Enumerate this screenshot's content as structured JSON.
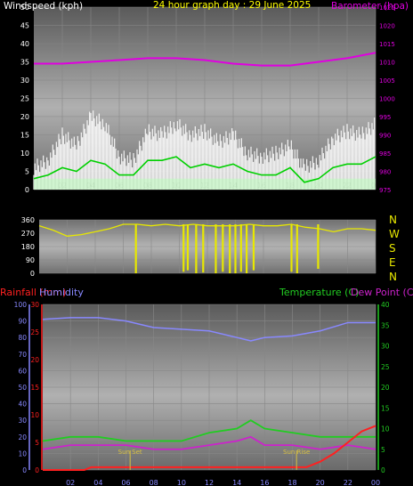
{
  "colors": {
    "background": "#000000",
    "wind": "#ffffff",
    "gust_avg": "#00d000",
    "wind_light": "#b8ffb8",
    "barometer": "#e000e0",
    "title": "#ffff00",
    "direction": "#e8e800",
    "rainfall": "#ff2020",
    "humidity": "#8888ff",
    "temperature": "#22cc22",
    "dewpoint": "#cc22cc",
    "sun": "#d8c040"
  },
  "chart_data": [
    {
      "type": "line",
      "title": "24 hour graph day : 29 June 2025",
      "left_axis_label": "Windspeed (kph)",
      "right_axis_label": "Barometer (hpa)",
      "x_ticks": [
        "02",
        "04",
        "06",
        "08",
        "10",
        "12",
        "14",
        "16",
        "18",
        "20",
        "22",
        "00"
      ],
      "left_ticks": [
        0,
        5,
        10,
        15,
        20,
        25,
        30,
        35,
        40,
        45,
        50
      ],
      "right_ticks": [
        975,
        980,
        985,
        990,
        995,
        1000,
        1005,
        1010,
        1015,
        1020,
        1025
      ],
      "left_ylim": [
        0,
        50
      ],
      "right_ylim": [
        975,
        1025
      ],
      "grid": true,
      "series": [
        {
          "role": "wind_gust",
          "x": [
            0,
            1,
            2,
            3,
            4,
            5,
            6,
            7,
            8,
            9,
            10,
            11,
            12,
            13,
            14,
            15,
            16,
            17,
            18,
            19,
            20,
            21,
            22,
            23,
            24
          ],
          "values": [
            6,
            8,
            15,
            12,
            20,
            18,
            9,
            8,
            16,
            15,
            18,
            15,
            16,
            13,
            15,
            10,
            9,
            10,
            12,
            6,
            8,
            14,
            16,
            15,
            18
          ]
        },
        {
          "role": "wind_avg",
          "x": [
            0,
            1,
            2,
            3,
            4,
            5,
            6,
            7,
            8,
            9,
            10,
            11,
            12,
            13,
            14,
            15,
            16,
            17,
            18,
            19,
            20,
            21,
            22,
            23,
            24
          ],
          "values": [
            3,
            4,
            6,
            5,
            8,
            7,
            4,
            4,
            8,
            8,
            9,
            6,
            7,
            6,
            7,
            5,
            4,
            4,
            6,
            2,
            3,
            6,
            7,
            7,
            9
          ]
        },
        {
          "role": "barometer",
          "x": [
            0,
            2,
            4,
            6,
            8,
            10,
            12,
            14,
            16,
            18,
            20,
            22,
            24
          ],
          "values": [
            1009.5,
            1009.5,
            1010,
            1010.5,
            1011,
            1011,
            1010.5,
            1009.5,
            1009,
            1009,
            1010,
            1011,
            1012.5
          ]
        }
      ]
    },
    {
      "type": "line",
      "title": "",
      "left_ticks": [
        0,
        90,
        180,
        270,
        360
      ],
      "left_ylim": [
        0,
        360
      ],
      "right_labels": [
        "N",
        "W",
        "S",
        "E",
        "N"
      ],
      "x_ticks": [
        "02",
        "04",
        "06",
        "08",
        "10",
        "12",
        "14",
        "16",
        "18",
        "20",
        "22",
        "00"
      ],
      "series": [
        {
          "role": "wind_direction",
          "x": [
            0,
            1,
            2,
            3,
            4,
            5,
            6,
            7,
            8,
            9,
            10,
            11,
            12,
            13,
            14,
            15,
            16,
            17,
            18,
            19,
            20,
            21,
            22,
            23,
            24
          ],
          "values": [
            320,
            290,
            250,
            260,
            280,
            300,
            330,
            330,
            320,
            330,
            320,
            330,
            320,
            320,
            320,
            330,
            320,
            320,
            330,
            310,
            300,
            280,
            300,
            300,
            290
          ]
        }
      ]
    },
    {
      "type": "line",
      "title": "",
      "left_outer_label": "Rainfall (mm)",
      "left_inner_label": "Humidity",
      "right_label": "Temperature (C)",
      "right_label_2": "Dew Point (C)",
      "humidity_ticks": [
        0,
        10,
        20,
        30,
        40,
        50,
        60,
        70,
        80,
        90,
        100
      ],
      "rain_ticks": [
        0,
        5,
        10,
        15,
        20,
        25,
        30
      ],
      "temp_ticks": [
        0,
        5,
        10,
        15,
        20,
        25,
        30,
        35,
        40
      ],
      "humidity_ylim": [
        0,
        100
      ],
      "rain_ylim": [
        0,
        30
      ],
      "temp_ylim": [
        0,
        40
      ],
      "x_ticks": [
        "02",
        "04",
        "06",
        "08",
        "10",
        "12",
        "14",
        "16",
        "18",
        "20",
        "22",
        "00"
      ],
      "annotations": [
        {
          "text": "Sun Set",
          "x": 6.3
        },
        {
          "text": "Sun Rise",
          "x": 18.3
        }
      ],
      "series": [
        {
          "role": "humidity",
          "x": [
            0,
            2,
            4,
            6,
            8,
            10,
            12,
            14,
            15,
            16,
            18,
            20,
            22,
            23,
            24
          ],
          "values": [
            91,
            92,
            92,
            90,
            86,
            85,
            84,
            80,
            78,
            80,
            81,
            84,
            89,
            89,
            89
          ]
        },
        {
          "role": "temperature",
          "x": [
            0,
            2,
            4,
            6,
            8,
            10,
            12,
            14,
            15,
            16,
            18,
            20,
            22,
            24
          ],
          "values": [
            7,
            8,
            8,
            7,
            7,
            7,
            9,
            10,
            12,
            10,
            9,
            8,
            8,
            8
          ]
        },
        {
          "role": "dewpoint",
          "x": [
            0,
            2,
            4,
            6,
            8,
            10,
            12,
            14,
            15,
            16,
            18,
            20,
            22,
            24
          ],
          "values": [
            5,
            6,
            6,
            6,
            5,
            5,
            6,
            7,
            8,
            6,
            6,
            5,
            6,
            5
          ]
        },
        {
          "role": "rainfall",
          "x": [
            0,
            3,
            3.5,
            19,
            20,
            21,
            22,
            23,
            24
          ],
          "values": [
            0,
            0,
            0.5,
            0.5,
            1.5,
            3,
            5,
            7,
            8
          ]
        }
      ]
    }
  ]
}
